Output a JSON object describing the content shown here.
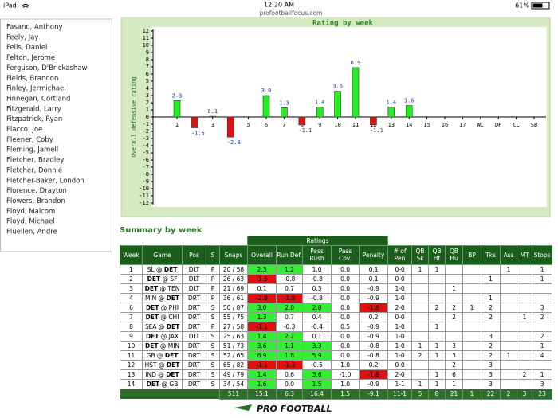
{
  "status_bar": {
    "device": "iPad",
    "time": "12:20 AM",
    "battery": "61%",
    "url": "profootballfocus.com"
  },
  "sidebar": {
    "players": [
      "Fasano, Anthony",
      "Feely, Jay",
      "Fells, Daniel",
      "Felton, Jerome",
      "Ferguson, D'Brickashaw",
      "Fields, Brandon",
      "Finley, Jermichael",
      "Finnegan, Cortland",
      "Fitzgerald, Larry",
      "Fitzpatrick, Ryan",
      "Flacco, Joe",
      "Fleener, Coby",
      "Fleming, Jamell",
      "Fletcher, Bradley",
      "Fletcher, Donnie",
      "Fletcher-Baker, London",
      "Florence, Drayton",
      "Flowers, Brandon",
      "Floyd, Malcom",
      "Floyd, Michael",
      "Fluellen, Andre"
    ]
  },
  "chart": {
    "type": "bar",
    "title": "Rating by week",
    "y_label": "Overall defensive rating",
    "categories": [
      "1",
      "2",
      "3",
      "4",
      "5",
      "6",
      "7",
      "8",
      "9",
      "10",
      "11",
      "12",
      "13",
      "14",
      "15",
      "16",
      "17",
      "WC",
      "DP",
      "CC",
      "SB"
    ],
    "values": [
      2.3,
      -1.5,
      0.1,
      -2.8,
      null,
      3.0,
      1.3,
      -1.1,
      1.4,
      3.6,
      6.9,
      -1.1,
      1.4,
      1.6,
      null,
      null,
      null,
      null,
      null,
      null,
      null
    ],
    "value_labels": [
      "2.3",
      "-1.5",
      "0.1",
      "-2.8",
      null,
      "3.0",
      "1.3",
      "-1.1",
      "1.4",
      "3.6",
      "6.9",
      "-1.1",
      "1.4",
      "1.6",
      null,
      null,
      null,
      null,
      null,
      null,
      null
    ],
    "ylim": [
      -12,
      12
    ],
    "yticks": [
      12,
      11,
      10,
      9,
      8,
      7,
      6,
      5,
      4,
      3,
      2,
      1,
      0,
      -1,
      -2,
      -3,
      -4,
      -5,
      -6,
      -7,
      -8,
      -9,
      -10,
      -11,
      -12
    ],
    "positive_color": "#22ee22",
    "negative_color": "#dd1111",
    "background": "#d5eac0"
  },
  "summary": {
    "title": "Summary by week",
    "group_header": "Ratings",
    "columns": [
      "Week",
      "Game",
      "Pos",
      "S",
      "Snaps",
      "Overall",
      "Run Def.",
      "Pass Rush",
      "Pass Cov.",
      "Penalty",
      "# of Pen",
      "QB Sk",
      "QB Ht",
      "QB Hu",
      "BP",
      "Tks",
      "Ass",
      "MT",
      "Stops"
    ],
    "rows": [
      [
        "1",
        [
          "SL @ ",
          {
            "bold": "DET"
          }
        ],
        "DLT",
        "P",
        "20 / 58",
        "2.3",
        "1.2",
        "1.0",
        "0.0",
        "0.1",
        "0-0",
        "1",
        "1",
        null,
        null,
        null,
        "1",
        null,
        "1"
      ],
      [
        "2",
        [
          {
            "bold": "DET"
          },
          " @ SF"
        ],
        "DLT",
        "P",
        "26 / 63",
        "-1.5",
        "-0.8",
        "-0.8",
        "0.0",
        "0.1",
        "0-0",
        null,
        null,
        null,
        null,
        "1",
        null,
        null,
        "1"
      ],
      [
        "3",
        [
          {
            "bold": "DET"
          },
          " @ TEN"
        ],
        "DLT",
        "P",
        "21 / 69",
        "0.1",
        "0.7",
        "0.3",
        "0.0",
        "-0.9",
        "1-0",
        null,
        null,
        "1",
        null,
        null,
        null,
        null,
        null
      ],
      [
        "4",
        [
          "MIN @ ",
          {
            "bold": "DET"
          }
        ],
        "DRT",
        "P",
        "36 / 61",
        "-2.8",
        "-1.9",
        "-0.8",
        "0.0",
        "-0.9",
        "1-0",
        null,
        null,
        null,
        null,
        "1",
        null,
        null,
        null
      ],
      [
        "6",
        [
          {
            "bold": "DET"
          },
          " @ PHI"
        ],
        "DRT",
        "S",
        "50 / 87",
        "3.0",
        "2.0",
        "2.8",
        "0.0",
        "-1.8",
        "2-0",
        null,
        "2",
        "2",
        "1",
        "2",
        null,
        null,
        "3"
      ],
      [
        "7",
        [
          {
            "bold": "DET"
          },
          " @ CHI"
        ],
        "DRT",
        "S",
        "55 / 75",
        "1.3",
        "0.7",
        "0.4",
        "0.0",
        "0.2",
        "0-0",
        null,
        null,
        "2",
        null,
        "2",
        null,
        "1",
        "2"
      ],
      [
        "8",
        [
          "SEA @ ",
          {
            "bold": "DET"
          }
        ],
        "DRT",
        "P",
        "27 / 58",
        "-1.1",
        "-0.3",
        "-0.4",
        "0.5",
        "-0.9",
        "1-0",
        null,
        "1",
        null,
        null,
        null,
        null,
        null,
        null
      ],
      [
        "9",
        [
          {
            "bold": "DET"
          },
          " @ JAX"
        ],
        "DLT",
        "S",
        "25 / 63",
        "1.4",
        "2.2",
        "0.1",
        "0.0",
        "-0.9",
        "1-0",
        null,
        null,
        null,
        null,
        "3",
        null,
        null,
        "2"
      ],
      [
        "10",
        [
          {
            "bold": "DET"
          },
          " @ MIN"
        ],
        "DRT",
        "S",
        "51 / 73",
        "3.6",
        "1.1",
        "3.3",
        "0.0",
        "-0.8",
        "1-0",
        "1",
        "1",
        "3",
        null,
        "2",
        null,
        null,
        "1"
      ],
      [
        "11",
        [
          "GB @ ",
          {
            "bold": "DET"
          }
        ],
        "DRT",
        "S",
        "52 / 65",
        "6.9",
        "1.8",
        "5.9",
        "0.0",
        "-0.8",
        "1-0",
        "2",
        "1",
        "3",
        null,
        "2",
        "1",
        null,
        "4"
      ],
      [
        "12",
        [
          "HST @ ",
          {
            "bold": "DET"
          }
        ],
        "DRT",
        "S",
        "65 / 82",
        "-1.1",
        "-1.3",
        "-0.5",
        "1.0",
        "0.2",
        "0-0",
        null,
        null,
        "2",
        null,
        "3",
        null,
        null,
        null
      ],
      [
        "13",
        [
          "IND @ ",
          {
            "bold": "DET"
          }
        ],
        "DRT",
        "S",
        "49 / 79",
        "1.4",
        "0.6",
        "3.6",
        "-1.0",
        "-1.8",
        "2-0",
        null,
        "1",
        "6",
        null,
        "3",
        null,
        "2",
        "1"
      ],
      [
        "14",
        [
          {
            "bold": "DET"
          },
          " @ GB"
        ],
        "DRT",
        "S",
        "34 / 54",
        "1.6",
        "0.0",
        "1.5",
        "1.0",
        "-0.9",
        "1-1",
        "1",
        "1",
        "1",
        null,
        "3",
        null,
        null,
        "3"
      ]
    ],
    "totals": [
      "511",
      "15.1",
      "6.3",
      "16.4",
      "1.5",
      "-9.1",
      "11-1",
      "5",
      "8",
      "21",
      "1",
      "22",
      "2",
      "3",
      "23"
    ],
    "highlight": {
      "above": 1.0,
      "below": -1.0,
      "green": "#33ee33",
      "red": "#e01010"
    }
  },
  "footer": {
    "logo_text": "PRO FOOTBALL"
  }
}
